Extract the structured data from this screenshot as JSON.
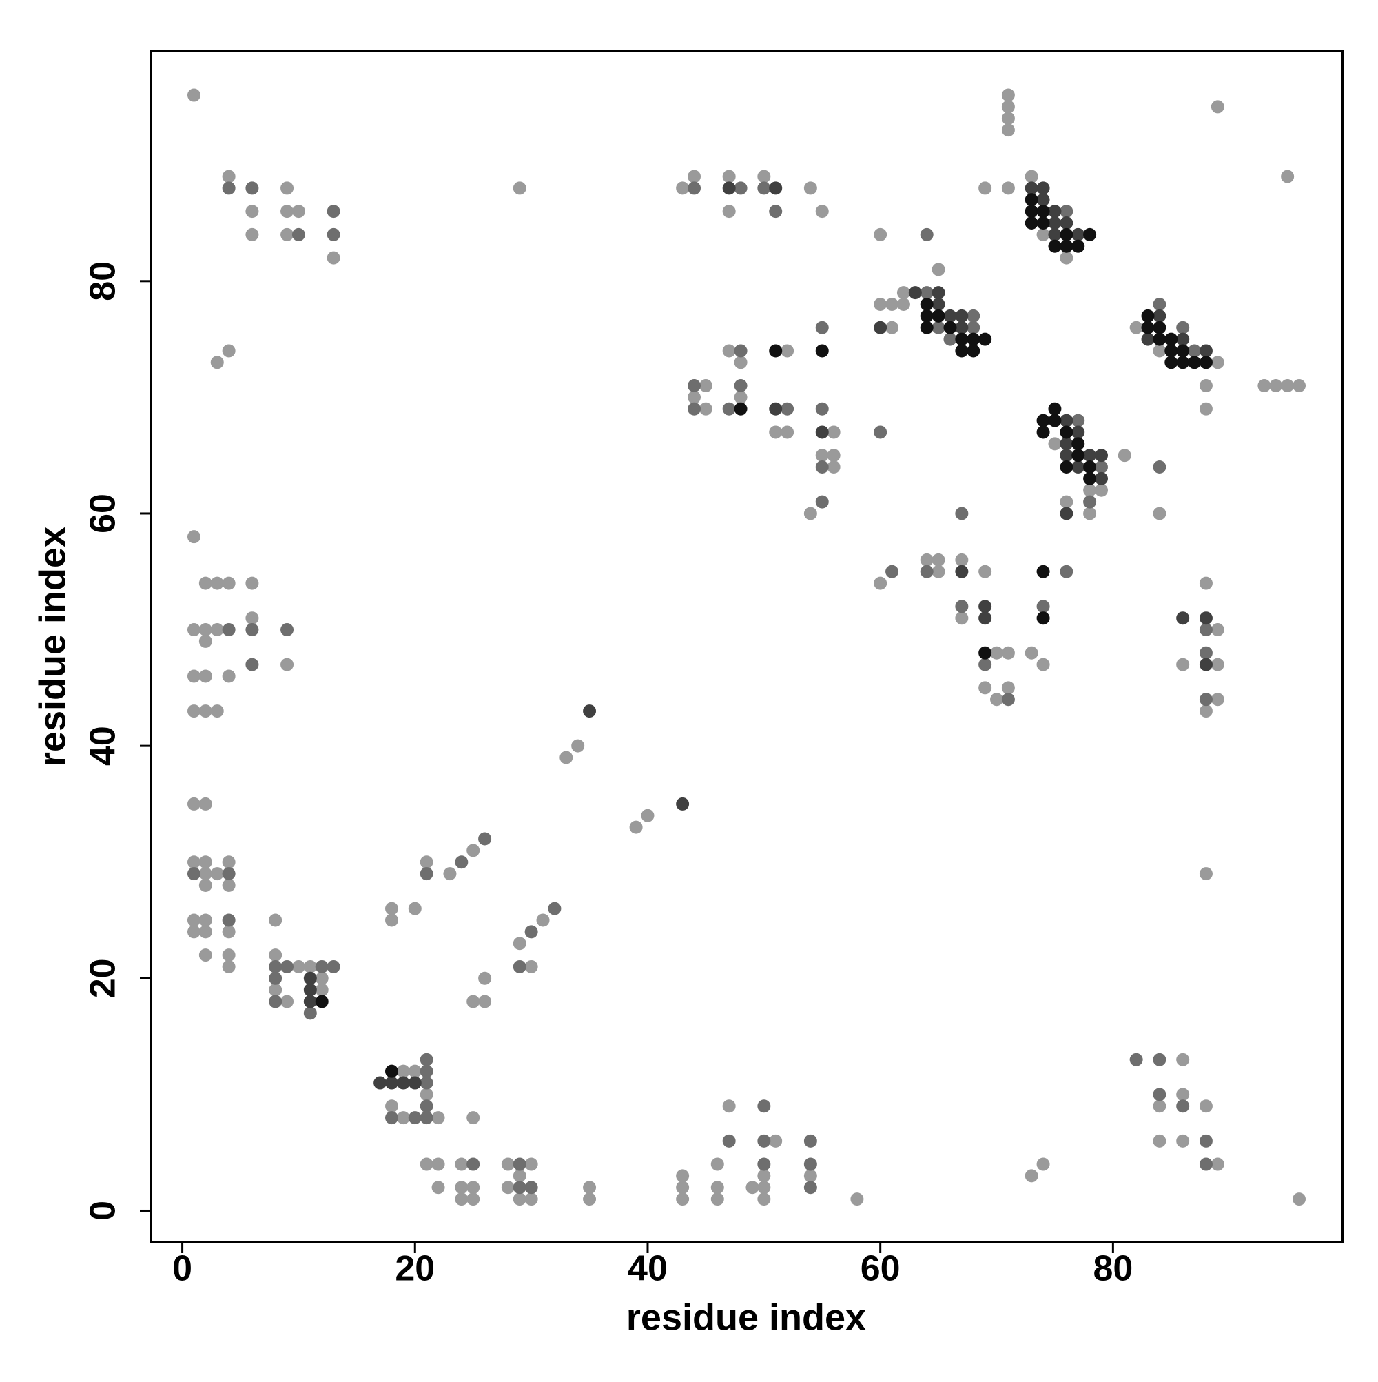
{
  "chart_data": {
    "type": "scatter",
    "xlabel": "residue index",
    "ylabel": "residue index",
    "xlim": [
      -2.7,
      99.7
    ],
    "ylim": [
      -2.7,
      99.8
    ],
    "xticks": [
      0,
      20,
      40,
      60,
      80
    ],
    "yticks": [
      0,
      20,
      40,
      60,
      80
    ],
    "grid": false,
    "series": [
      {
        "color": "#9a9a9a",
        "x": [
          1,
          4,
          6,
          6,
          9,
          9,
          10,
          9,
          13,
          3,
          4,
          1,
          2,
          3,
          4,
          6,
          1,
          2,
          3,
          2,
          6,
          1,
          2,
          4,
          9,
          1,
          2,
          3,
          1,
          2,
          1,
          2,
          4,
          2,
          3,
          2,
          4,
          1,
          2,
          1,
          2,
          4,
          2,
          4,
          4,
          8,
          8,
          10,
          11,
          12,
          8,
          12,
          9,
          18,
          18,
          20,
          21,
          23,
          25,
          29,
          31,
          26,
          25,
          26,
          30,
          33,
          34,
          39,
          40,
          19,
          20,
          21,
          18,
          19,
          22,
          21,
          22,
          22,
          24,
          24,
          25,
          24,
          25,
          25,
          28,
          30,
          29,
          28,
          29,
          30,
          35,
          35,
          43,
          43,
          43,
          46,
          46,
          46,
          47,
          51,
          50,
          49,
          50,
          50,
          54,
          58,
          73,
          74,
          86,
          84,
          86,
          88,
          84,
          86,
          89,
          96,
          43,
          44,
          47,
          47,
          50,
          54,
          55,
          29,
          71,
          71,
          71,
          71,
          69,
          71,
          89,
          95,
          60,
          65,
          73,
          74,
          76,
          60,
          61,
          62,
          62,
          61,
          82,
          84,
          89,
          88,
          88,
          93,
          94,
          95,
          96,
          75,
          78,
          79,
          76,
          78,
          81,
          84,
          47,
          48,
          45,
          44,
          45,
          48,
          52,
          52,
          51,
          56,
          55,
          56,
          56,
          54,
          60,
          64,
          65,
          65,
          67,
          69,
          67,
          70,
          71,
          69,
          71,
          70,
          73,
          74,
          86,
          88,
          89,
          89,
          89,
          88,
          88
        ],
        "y": [
          96,
          89,
          86,
          84,
          88,
          86,
          86,
          84,
          82,
          73,
          74,
          58,
          54,
          54,
          54,
          54,
          50,
          50,
          50,
          49,
          51,
          46,
          46,
          46,
          47,
          43,
          43,
          43,
          35,
          35,
          30,
          30,
          30,
          29,
          29,
          28,
          28,
          25,
          25,
          24,
          24,
          24,
          22,
          22,
          21,
          25,
          22,
          21,
          21,
          20,
          19,
          19,
          18,
          26,
          25,
          26,
          30,
          29,
          31,
          23,
          25,
          20,
          18,
          18,
          21,
          39,
          40,
          33,
          34,
          12,
          12,
          10,
          9,
          8,
          8,
          4,
          4,
          2,
          4,
          2,
          2,
          1,
          1,
          8,
          4,
          4,
          3,
          2,
          1,
          1,
          2,
          1,
          3,
          2,
          1,
          4,
          2,
          1,
          9,
          6,
          3,
          2,
          2,
          1,
          3,
          1,
          3,
          4,
          13,
          9,
          10,
          9,
          6,
          6,
          4,
          1,
          88,
          89,
          89,
          86,
          89,
          88,
          86,
          88,
          96,
          95,
          94,
          93,
          88,
          88,
          95,
          89,
          84,
          81,
          89,
          84,
          82,
          78,
          78,
          79,
          78,
          76,
          76,
          74,
          73,
          71,
          69,
          71,
          71,
          71,
          71,
          66,
          62,
          62,
          61,
          60,
          65,
          60,
          74,
          73,
          71,
          70,
          69,
          70,
          74,
          67,
          67,
          67,
          65,
          65,
          64,
          60,
          54,
          56,
          56,
          55,
          56,
          55,
          51,
          48,
          48,
          45,
          45,
          44,
          48,
          47,
          47,
          54,
          50,
          47,
          44,
          43,
          29
        ]
      },
      {
        "color": "#6e6e6e",
        "x": [
          4,
          6,
          10,
          13,
          13,
          4,
          6,
          9,
          6,
          1,
          4,
          4,
          8,
          9,
          12,
          13,
          8,
          8,
          11,
          21,
          24,
          26,
          30,
          32,
          29,
          21,
          21,
          21,
          21,
          18,
          20,
          21,
          25,
          29,
          29,
          30,
          47,
          50,
          50,
          50,
          54,
          54,
          54,
          82,
          84,
          84,
          86,
          88,
          88,
          44,
          48,
          50,
          51,
          64,
          76,
          64,
          68,
          65,
          68,
          66,
          84,
          86,
          87,
          77,
          79,
          78,
          84,
          44,
          44,
          48,
          47,
          48,
          52,
          55,
          55,
          55,
          55,
          60,
          67,
          61,
          64,
          67,
          69,
          71,
          74,
          76,
          88,
          88,
          88
        ],
        "y": [
          88,
          88,
          84,
          86,
          84,
          50,
          50,
          50,
          47,
          29,
          29,
          25,
          21,
          21,
          21,
          21,
          20,
          18,
          17,
          29,
          30,
          32,
          24,
          26,
          21,
          11,
          12,
          13,
          9,
          8,
          8,
          8,
          4,
          4,
          2,
          2,
          6,
          9,
          6,
          4,
          6,
          4,
          2,
          13,
          13,
          10,
          9,
          6,
          4,
          88,
          88,
          88,
          86,
          84,
          86,
          79,
          77,
          76,
          76,
          75,
          78,
          76,
          74,
          68,
          64,
          61,
          64,
          71,
          69,
          71,
          69,
          74,
          69,
          76,
          69,
          64,
          61,
          67,
          60,
          55,
          55,
          52,
          47,
          44,
          52,
          55,
          50,
          48,
          44
        ]
      },
      {
        "color": "#404040",
        "x": [
          11,
          11,
          11,
          17,
          18,
          19,
          20,
          35,
          43,
          47,
          51,
          73,
          74,
          74,
          75,
          75,
          76,
          75,
          77,
          63,
          65,
          65,
          66,
          67,
          60,
          67,
          84,
          83,
          86,
          88,
          76,
          77,
          76,
          76,
          78,
          79,
          77,
          79,
          76,
          51,
          55,
          67,
          69,
          69,
          86,
          88,
          88
        ],
        "y": [
          20,
          19,
          18,
          11,
          11,
          11,
          11,
          43,
          35,
          88,
          88,
          88,
          88,
          87,
          86,
          85,
          85,
          84,
          84,
          79,
          79,
          78,
          77,
          77,
          76,
          76,
          77,
          75,
          75,
          74,
          68,
          67,
          66,
          65,
          65,
          65,
          64,
          63,
          60,
          69,
          67,
          55,
          52,
          51,
          51,
          51,
          47
        ]
      },
      {
        "color": "#111111",
        "x": [
          12,
          18,
          73,
          73,
          74,
          73,
          74,
          76,
          75,
          76,
          77,
          78,
          64,
          64,
          65,
          64,
          66,
          67,
          68,
          69,
          67,
          68,
          83,
          83,
          84,
          84,
          85,
          85,
          86,
          85,
          86,
          87,
          88,
          75,
          74,
          75,
          74,
          76,
          77,
          77,
          76,
          78,
          78,
          51,
          55,
          48,
          74,
          69,
          74
        ],
        "y": [
          18,
          12,
          87,
          86,
          86,
          85,
          85,
          84,
          83,
          83,
          83,
          84,
          78,
          77,
          77,
          76,
          76,
          75,
          75,
          75,
          74,
          74,
          77,
          76,
          76,
          75,
          75,
          74,
          74,
          73,
          73,
          73,
          73,
          69,
          68,
          68,
          67,
          67,
          66,
          65,
          64,
          64,
          63,
          74,
          74,
          69,
          55,
          48,
          51
        ]
      }
    ]
  }
}
